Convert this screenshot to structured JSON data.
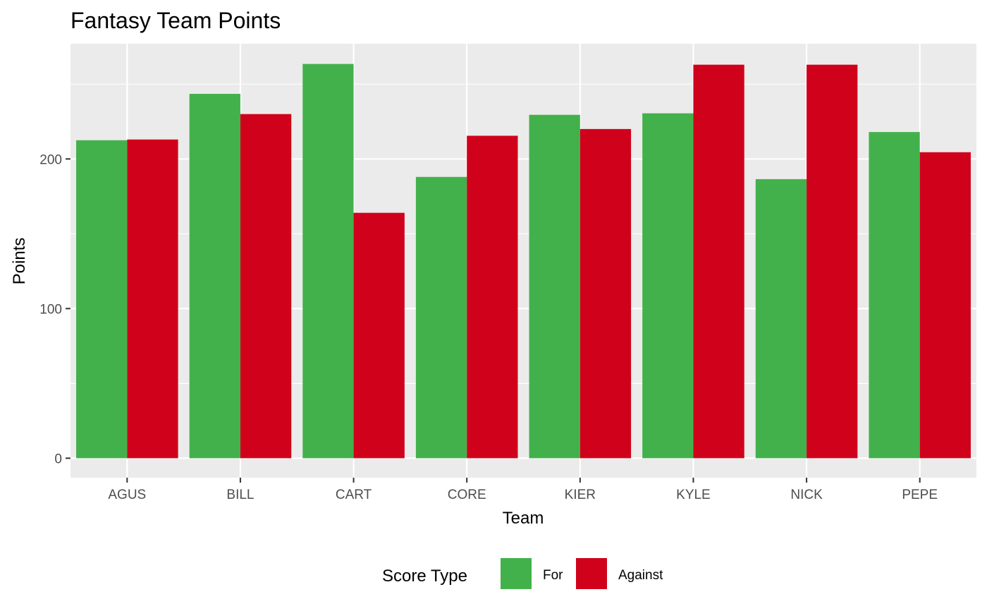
{
  "chart_data": {
    "type": "bar",
    "title": "Fantasy Team Points",
    "xlabel": "Team",
    "ylabel": "Points",
    "categories": [
      "AGUS",
      "BILL",
      "CART",
      "CORE",
      "KIER",
      "KYLE",
      "NICK",
      "PEPE"
    ],
    "series": [
      {
        "name": "For",
        "color": "#43b14b",
        "values": [
          212.5,
          243.5,
          263.5,
          188,
          229.5,
          230.5,
          186.5,
          218
        ]
      },
      {
        "name": "Against",
        "color": "#d0021b",
        "values": [
          213,
          230,
          164,
          215.5,
          220,
          263,
          263,
          204.5
        ]
      }
    ],
    "ylim": [
      -13,
      277
    ],
    "yticks": [
      0,
      100,
      200
    ],
    "grid": true,
    "legend": {
      "title": "Score Type",
      "position": "bottom"
    }
  }
}
